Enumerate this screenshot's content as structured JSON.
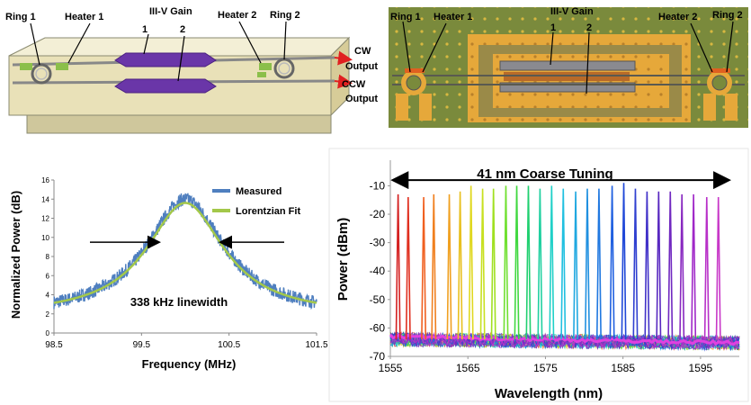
{
  "device_schematic": {
    "ring1": "Ring 1",
    "heater1": "Heater 1",
    "gain": "III-V Gain",
    "gain_num1": "1",
    "gain_num2": "2",
    "heater2": "Heater 2",
    "ring2": "Ring 2",
    "cw_output": [
      "CW",
      "Output"
    ],
    "ccw_output": [
      "CCW",
      "Output"
    ]
  },
  "device_photo": {
    "ring1": "Ring 1",
    "heater1": "Heater 1",
    "gain": "III-V Gain",
    "gain_num1": "1",
    "gain_num2": "2",
    "heater2": "Heater 2",
    "ring2": "Ring 2"
  },
  "chart_data": [
    {
      "type": "line",
      "title": "",
      "xlabel": "Frequency (MHz)",
      "ylabel": "Normalized Power (dB)",
      "x_ticks": [
        "98.5",
        "99.5",
        "100.5",
        "101.5"
      ],
      "y_ticks": [
        "0",
        "2",
        "4",
        "6",
        "8",
        "10",
        "12",
        "14",
        "16"
      ],
      "xlim": [
        98.5,
        101.5
      ],
      "ylim": [
        0,
        16
      ],
      "annotation": "338 kHz linewidth",
      "series": [
        {
          "name": "Measured",
          "color": "#4f7fbf",
          "center": 100.0,
          "peak": 14.0,
          "baseline": 1.8,
          "fwhm": 0.338
        },
        {
          "name": "Lorentzian Fit",
          "color": "#a3c84a",
          "center": 100.0,
          "peak": 13.6,
          "baseline": 1.8,
          "fwhm": 0.338
        }
      ],
      "legend_position": "top-right"
    },
    {
      "type": "line",
      "title": "41 nm Coarse Tuning",
      "xlabel": "Wavelength (nm)",
      "ylabel": "Power (dBm)",
      "x_ticks": [
        "1555",
        "1565",
        "1575",
        "1585",
        "1595"
      ],
      "y_ticks": [
        "-10",
        "-20",
        "-30",
        "-40",
        "-50",
        "-60",
        "-70"
      ],
      "xlim": [
        1555,
        1600
      ],
      "ylim": [
        -70,
        -1
      ],
      "noise_floor_dbm": -64,
      "peaks": [
        {
          "wavelength": 1556.0,
          "power": -13,
          "color": "#d42020"
        },
        {
          "wavelength": 1557.3,
          "power": -14,
          "color": "#e03020"
        },
        {
          "wavelength": 1559.3,
          "power": -14,
          "color": "#f06020"
        },
        {
          "wavelength": 1560.6,
          "power": -13,
          "color": "#f08020"
        },
        {
          "wavelength": 1562.6,
          "power": -13,
          "color": "#f0a020"
        },
        {
          "wavelength": 1564.0,
          "power": -12,
          "color": "#e8c020"
        },
        {
          "wavelength": 1565.4,
          "power": -10,
          "color": "#e0d820"
        },
        {
          "wavelength": 1566.9,
          "power": -11,
          "color": "#c8e020"
        },
        {
          "wavelength": 1568.3,
          "power": -11,
          "color": "#a0e020"
        },
        {
          "wavelength": 1569.9,
          "power": -10,
          "color": "#70e030"
        },
        {
          "wavelength": 1571.3,
          "power": -10,
          "color": "#40d840"
        },
        {
          "wavelength": 1572.8,
          "power": -10,
          "color": "#20d070"
        },
        {
          "wavelength": 1574.3,
          "power": -11,
          "color": "#20d0a0"
        },
        {
          "wavelength": 1575.8,
          "power": -10,
          "color": "#20d0c8"
        },
        {
          "wavelength": 1577.3,
          "power": -11,
          "color": "#20c0e0"
        },
        {
          "wavelength": 1578.9,
          "power": -12,
          "color": "#20a8e0"
        },
        {
          "wavelength": 1580.4,
          "power": -11,
          "color": "#2090e0"
        },
        {
          "wavelength": 1581.9,
          "power": -11,
          "color": "#2078e0"
        },
        {
          "wavelength": 1583.6,
          "power": -10,
          "color": "#2060e0"
        },
        {
          "wavelength": 1585.1,
          "power": -9,
          "color": "#2048d8"
        },
        {
          "wavelength": 1586.6,
          "power": -11,
          "color": "#3040d0"
        },
        {
          "wavelength": 1588.1,
          "power": -12,
          "color": "#4030c8"
        },
        {
          "wavelength": 1589.6,
          "power": -12,
          "color": "#5828c0"
        },
        {
          "wavelength": 1591.1,
          "power": -12,
          "color": "#7028c0"
        },
        {
          "wavelength": 1592.6,
          "power": -13,
          "color": "#8828c0"
        },
        {
          "wavelength": 1594.1,
          "power": -13,
          "color": "#a028c8"
        },
        {
          "wavelength": 1595.8,
          "power": -14,
          "color": "#b830c8"
        },
        {
          "wavelength": 1597.3,
          "power": -14,
          "color": "#c838c8"
        }
      ],
      "annotation_arrow": {
        "from": 1555.5,
        "to": 1598.5,
        "power": -8
      }
    }
  ]
}
